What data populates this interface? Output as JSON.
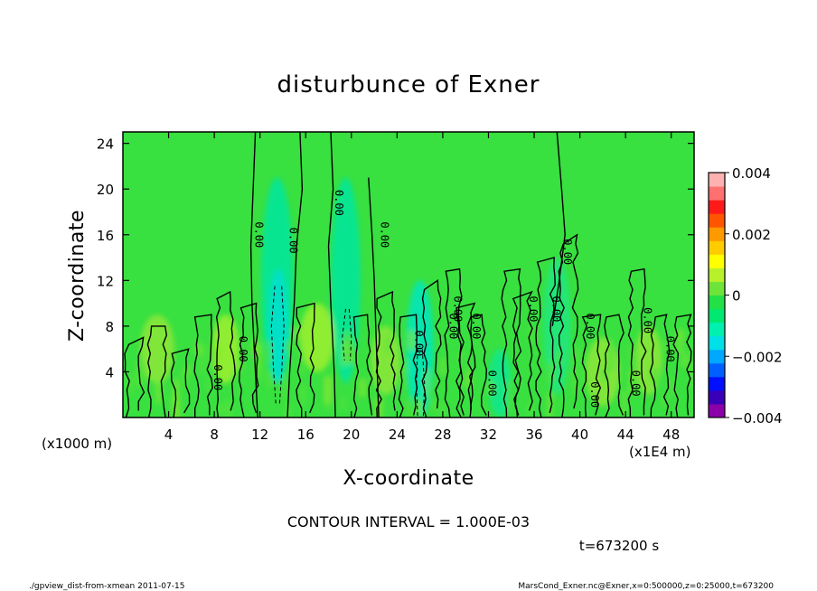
{
  "chart_data": {
    "type": "heatmap",
    "title": "disturbunce of Exner",
    "xlabel": "X-coordinate",
    "ylabel": "Z-coordinate",
    "x_unit_label": "(x1E4 m)",
    "y_unit_label": "(x1000 m)",
    "xlim": [
      0,
      50
    ],
    "ylim": [
      0,
      25
    ],
    "x_ticks": [
      4,
      8,
      12,
      16,
      20,
      24,
      28,
      32,
      36,
      40,
      44,
      48
    ],
    "y_ticks": [
      4,
      8,
      12,
      16,
      20,
      24
    ],
    "colorbar": {
      "min": -0.004,
      "max": 0.004,
      "tick_values": [
        0.004,
        0.002,
        0,
        -0.002,
        -0.004
      ],
      "tick_labels": [
        "0.004",
        "0.002",
        "0",
        "−0.002",
        "−0.004"
      ],
      "colors": [
        "#8b00a8",
        "#3a00b8",
        "#0010ff",
        "#0060ff",
        "#00a8ff",
        "#00e0e6",
        "#00f0b0",
        "#00e870",
        "#22e046",
        "#6ee43a",
        "#b8f02a",
        "#ffff00",
        "#ffcc00",
        "#ff9900",
        "#ff5500",
        "#ff1a1a",
        "#ff7070",
        "#ffb0b0"
      ]
    },
    "background_color": "#38e040",
    "contour_label": "0.00",
    "contour_label_positions": [
      [
        8.0,
        3.5
      ],
      [
        10.2,
        6.0
      ],
      [
        11.6,
        16.0
      ],
      [
        14.6,
        15.5
      ],
      [
        18.6,
        18.8
      ],
      [
        22.6,
        16.0
      ],
      [
        25.6,
        6.5
      ],
      [
        28.6,
        8.0
      ],
      [
        29.0,
        9.5
      ],
      [
        30.6,
        8.0
      ],
      [
        32.0,
        3.0
      ],
      [
        35.6,
        9.5
      ],
      [
        37.6,
        9.5
      ],
      [
        38.6,
        14.5
      ],
      [
        40.6,
        8.0
      ],
      [
        41.0,
        2.0
      ],
      [
        44.6,
        3.0
      ],
      [
        45.6,
        8.5
      ],
      [
        47.6,
        6.0
      ]
    ],
    "contour_interval_text": "CONTOUR INTERVAL = 1.000E-03",
    "time_label": "t=673200 s",
    "footer_left": "./gpview_dist-from-xmean  2011-07-15",
    "footer_right": "MarsCond_Exner.nc@Exner,x=0:500000,z=0:25000,t=673200"
  }
}
